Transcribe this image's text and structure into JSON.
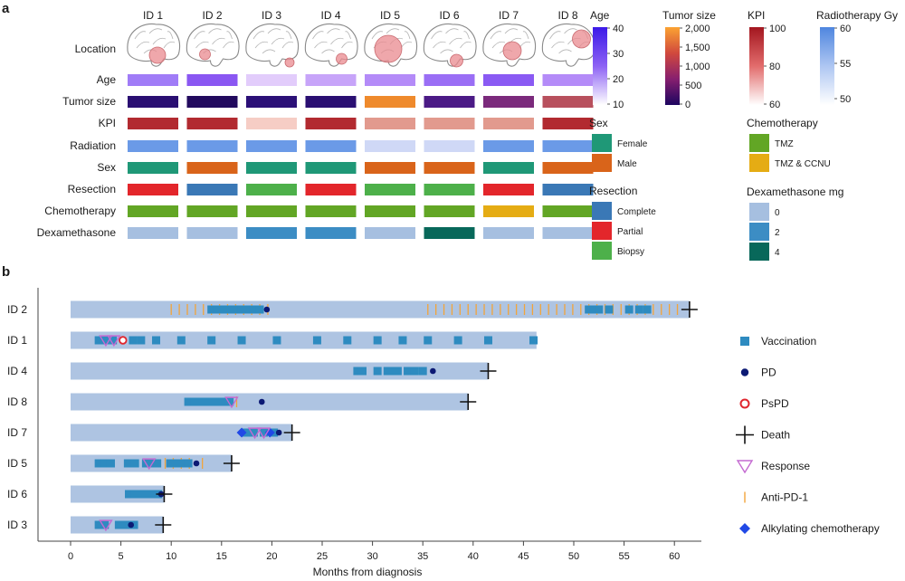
{
  "panel_a": {
    "label": "a",
    "patients": [
      "ID 1",
      "ID 2",
      "ID 3",
      "ID 4",
      "ID 5",
      "ID 6",
      "ID 7",
      "ID 8"
    ],
    "row_labels": [
      "Location",
      "Age",
      "Tumor size",
      "KPI",
      "Radiation",
      "Sex",
      "Resection",
      "Chemotherapy",
      "Dexamethasone"
    ],
    "tracks": {
      "Age": [
        "#a07cf7",
        "#8a57f2",
        "#e2ccfb",
        "#c7a4f9",
        "#b48bf8",
        "#9a6ef5",
        "#8a5af3",
        "#b48bf8"
      ],
      "Tumor size": [
        "#2a0f72",
        "#220a5e",
        "#2b1077",
        "#2a0f72",
        "#ef8a2c",
        "#4b1a86",
        "#7b2a7c",
        "#b8505d"
      ],
      "KPI": [
        "#b22a30",
        "#b22a30",
        "#f6cdc5",
        "#b22a30",
        "#e29a8e",
        "#e29a8e",
        "#e29a8e",
        "#b22a30"
      ],
      "Radiation": [
        "#6b9ae7",
        "#6b9ae7",
        "#6b9ae7",
        "#6b9ae7",
        "#cfd8f6",
        "#cfd8f6",
        "#6b9ae7",
        "#6b9ae7"
      ],
      "Sex": [
        "#1f9877",
        "#d9641a",
        "#1f9877",
        "#1f9877",
        "#d9641a",
        "#d9641a",
        "#1f9877",
        "#d9641a"
      ],
      "Resection": [
        "#e3262b",
        "#3a78b6",
        "#4db04a",
        "#e3262b",
        "#4db04a",
        "#4db04a",
        "#e3262b",
        "#3a78b6"
      ],
      "Chemotherapy": [
        "#62a625",
        "#62a625",
        "#62a625",
        "#62a625",
        "#62a625",
        "#62a625",
        "#e5ac14",
        "#62a625"
      ],
      "Dexamethasone": [
        "#a6bfe0",
        "#a6bfe0",
        "#3c8dc4",
        "#3c8dc4",
        "#a6bfe0",
        "#08685a",
        "#a6bfe0",
        "#a6bfe0"
      ]
    },
    "legends": {
      "age": {
        "title": "Age",
        "ticks": [
          "40",
          "30",
          "20",
          "10"
        ],
        "colors": [
          "#3b19e8",
          "#8d62f4",
          "#ffffff"
        ]
      },
      "tumor_size": {
        "title": "Tumor size",
        "ticks": [
          "2,000",
          "1,500",
          "1,000",
          "500",
          "0"
        ],
        "colors": [
          "#fba332",
          "#d1493d",
          "#871f6f",
          "#1d0560"
        ]
      },
      "kpi": {
        "title": "KPI",
        "ticks": [
          "100",
          "80",
          "60"
        ],
        "colors": [
          "#a3161f",
          "#e26c6c",
          "#ffffff"
        ]
      },
      "radiotherapy": {
        "title": "Radiotherapy Gy",
        "ticks": [
          "60",
          "55",
          "50"
        ],
        "colors": [
          "#4f86df",
          "#aec6f2",
          "#ffffff"
        ]
      },
      "sex": {
        "title": "Sex",
        "items": [
          {
            "label": "Female",
            "color": "#1f9877"
          },
          {
            "label": "Male",
            "color": "#d9641a"
          }
        ]
      },
      "chemotherapy": {
        "title": "Chemotherapy",
        "items": [
          {
            "label": "TMZ",
            "color": "#62a625"
          },
          {
            "label": "TMZ & CCNU",
            "color": "#e5ac14"
          }
        ]
      },
      "resection": {
        "title": "Resection",
        "items": [
          {
            "label": "Complete",
            "color": "#3a78b6"
          },
          {
            "label": "Partial",
            "color": "#e3262b"
          },
          {
            "label": "Biopsy",
            "color": "#4db04a"
          }
        ]
      },
      "dexamethasone": {
        "title": "Dexamethasone mg",
        "items": [
          {
            "label": "0",
            "color": "#a6bfe0"
          },
          {
            "label": "2",
            "color": "#3c8dc4"
          },
          {
            "label": "4",
            "color": "#08685a"
          }
        ]
      }
    }
  },
  "chart_data": {
    "type": "swimmer",
    "label": "b",
    "xlabel": "Months from diagnosis",
    "xlim": [
      -3,
      63
    ],
    "xticks": [
      0,
      5,
      10,
      15,
      20,
      25,
      30,
      35,
      40,
      45,
      50,
      55,
      60
    ],
    "patients": [
      {
        "id": "ID 2",
        "end": 61.5,
        "death": true,
        "vaccination": [
          14,
          14.6,
          15.2,
          15.8,
          16.4,
          17,
          17.6,
          18.2,
          18.8,
          51.5,
          52,
          52.5,
          53.5,
          55.5,
          56.5,
          57.3
        ],
        "pd": [
          19.5
        ],
        "pspd": [],
        "response": [],
        "alkylating": [],
        "anti_pd1": [
          10,
          10.8,
          11.6,
          12.4,
          13.2,
          14,
          14.8,
          15.6,
          16.4,
          17.2,
          18,
          18.8,
          19.6,
          35.5,
          36.3,
          37.1,
          37.9,
          38.7,
          39.5,
          40.3,
          41.1,
          41.9,
          42.7,
          43.5,
          44.3,
          45.1,
          45.9,
          46.7,
          47.5,
          48.3,
          49.1,
          49.9,
          50.7,
          51.5,
          52.3,
          53.1,
          53.9,
          54.7,
          55.5,
          56.3,
          57.1,
          57.9,
          58.7,
          59.5,
          60.3
        ]
      },
      {
        "id": "ID 1",
        "end": 46.3,
        "death": false,
        "vaccination": [
          2.8,
          3.3,
          3.8,
          4.2,
          6.2,
          7,
          8.5,
          11,
          14,
          17,
          20.5,
          24.5,
          27.5,
          30.5,
          33,
          35.5,
          38.5,
          41.5,
          46
        ],
        "pd": [],
        "pspd": [
          5.2
        ],
        "response": [
          3.5,
          4.3
        ],
        "alkylating": [],
        "anti_pd1": []
      },
      {
        "id": "ID 4",
        "end": 41.5,
        "death": true,
        "vaccination": [
          28.5,
          29,
          30.5,
          31.5,
          32,
          32.5,
          33.5,
          34.2,
          35
        ],
        "pd": [
          36
        ],
        "pspd": [],
        "response": [],
        "alkylating": [],
        "anti_pd1": []
      },
      {
        "id": "ID 8",
        "end": 39.5,
        "death": true,
        "vaccination": [
          11.7,
          12.3,
          12.9,
          13.5,
          14.1,
          14.7,
          15.3,
          15.8
        ],
        "pd": [
          19
        ],
        "pspd": [],
        "response": [
          16
        ],
        "alkylating": [],
        "anti_pd1": [
          16.5
        ]
      },
      {
        "id": "ID 7",
        "end": 22,
        "death": true,
        "vaccination": [
          17.5,
          18.2,
          19.2,
          20.2
        ],
        "pd": [
          20.7
        ],
        "pspd": [],
        "response": [
          18.3,
          19.2
        ],
        "alkylating": [
          17,
          19.8
        ],
        "anti_pd1": []
      },
      {
        "id": "ID 5",
        "end": 16,
        "death": true,
        "vaccination": [
          2.8,
          3.4,
          4,
          5.7,
          6.4,
          7.5,
          8.1,
          8.6,
          9.9,
          10.5,
          11.2,
          11.7
        ],
        "pd": [
          12.5
        ],
        "pspd": [],
        "response": [
          7.8
        ],
        "alkylating": [],
        "anti_pd1": [
          9.4,
          10.2,
          11,
          11.8,
          13.1
        ]
      },
      {
        "id": "ID 6",
        "end": 9.3,
        "death": true,
        "vaccination": [
          5.8,
          6.4,
          7,
          7.6,
          8.2,
          8.7
        ],
        "pd": [
          9
        ],
        "pspd": [],
        "response": [],
        "alkylating": [],
        "anti_pd1": []
      },
      {
        "id": "ID 3",
        "end": 9.2,
        "death": true,
        "vaccination": [
          2.8,
          3.4,
          4.8,
          5.5,
          6.3
        ],
        "pd": [
          6
        ],
        "pspd": [],
        "response": [
          3.5
        ],
        "alkylating": [],
        "anti_pd1": []
      }
    ],
    "legend": [
      "Vaccination",
      "PD",
      "PsPD",
      "Death",
      "Response",
      "Anti-PD-1",
      "Alkylating chemotherapy"
    ],
    "colors": {
      "bar": "#aec4e2",
      "vaccination": "#2e8bc0",
      "pd": "#0c1a74",
      "pspd": "#e0262e",
      "death": "#111111",
      "response": "#c46ad1",
      "anti_pd1": "#f2a43a",
      "alkylating": "#2149e6"
    }
  }
}
